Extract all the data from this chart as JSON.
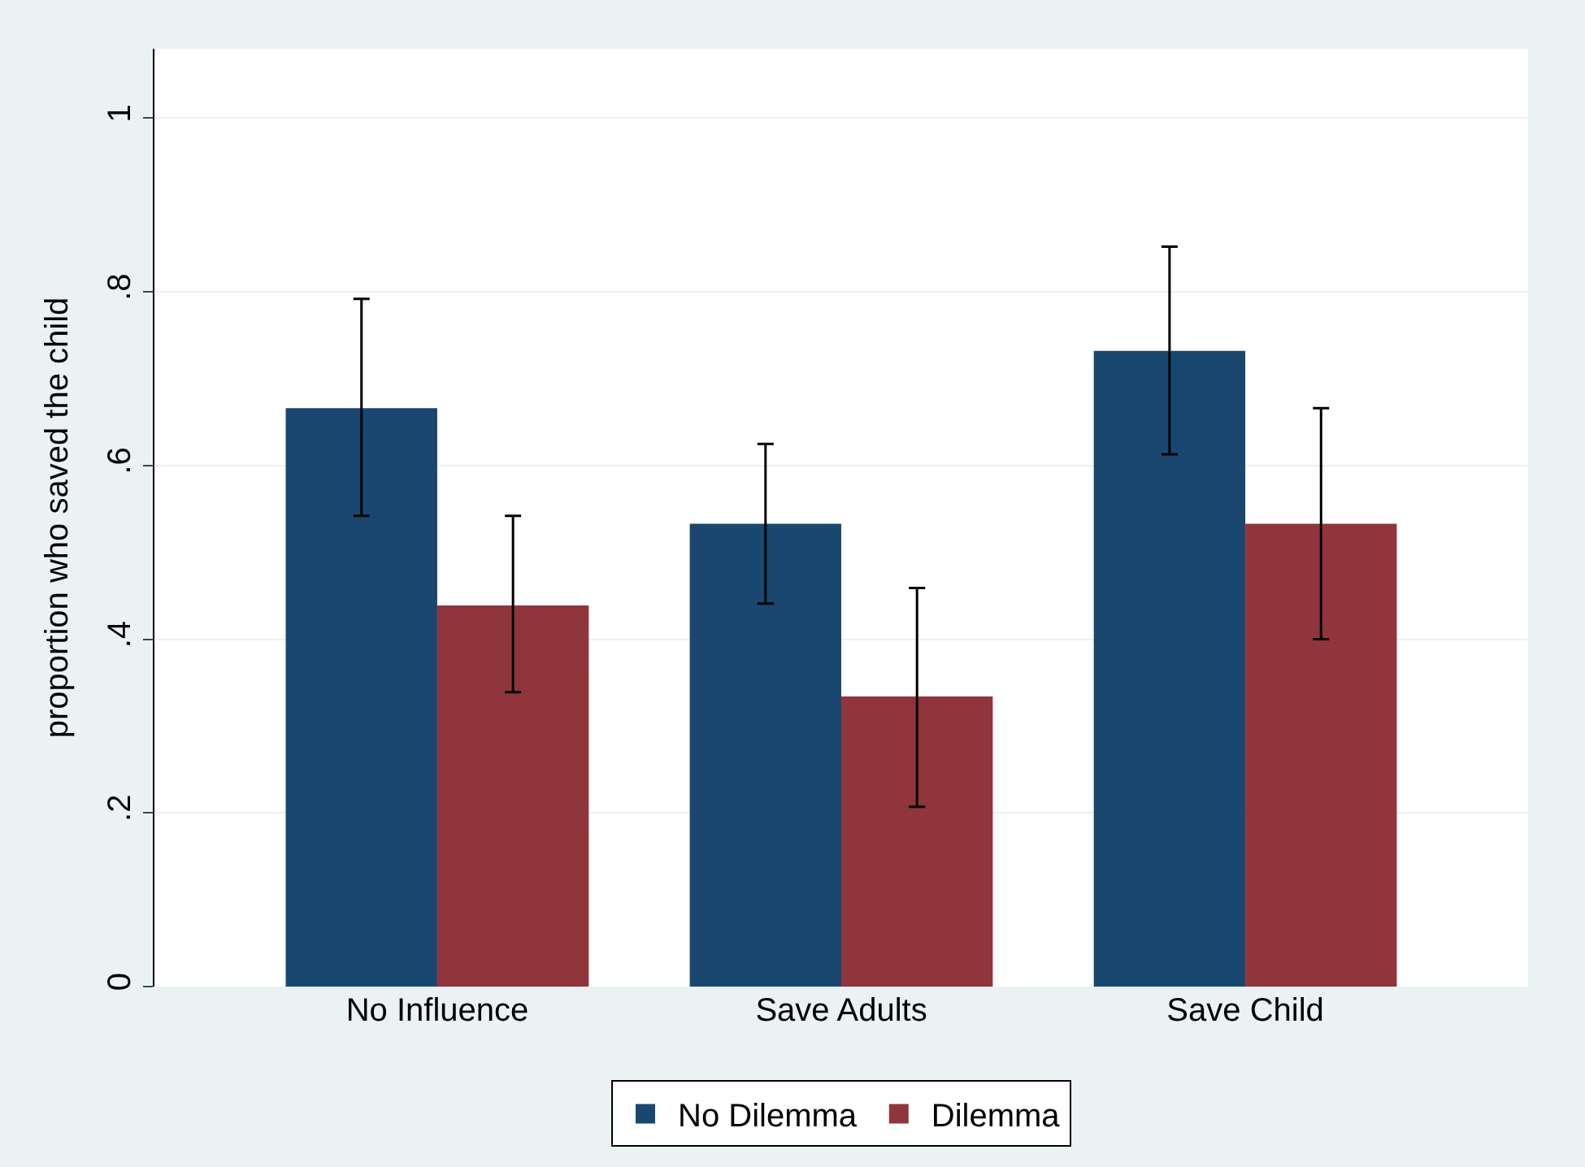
{
  "chart_data": {
    "type": "bar",
    "ylabel": "proportion who saved the child",
    "categories": [
      "No Influence",
      "Save Adults",
      "Save Child"
    ],
    "series": [
      {
        "name": "No Dilemma",
        "color": "#1a476f",
        "values": [
          0.666,
          0.533,
          0.732
        ],
        "errors": [
          [
            0.542,
            0.792
          ],
          [
            0.441,
            0.625
          ],
          [
            0.613,
            0.852
          ]
        ]
      },
      {
        "name": "Dilemma",
        "color": "#90353b",
        "values": [
          0.439,
          0.334,
          0.533
        ],
        "errors": [
          [
            0.339,
            0.542
          ],
          [
            0.207,
            0.459
          ],
          [
            0.4,
            0.666
          ]
        ]
      }
    ],
    "ylim": [
      0,
      1.08
    ],
    "yticks": [
      {
        "value": 0,
        "label": "0"
      },
      {
        "value": 0.2,
        "label": ".2"
      },
      {
        "value": 0.4,
        "label": ".4"
      },
      {
        "value": 0.6,
        "label": ".6"
      },
      {
        "value": 0.8,
        "label": ".8"
      },
      {
        "value": 1,
        "label": "1"
      }
    ],
    "grid": "y",
    "legend": "bottom"
  }
}
